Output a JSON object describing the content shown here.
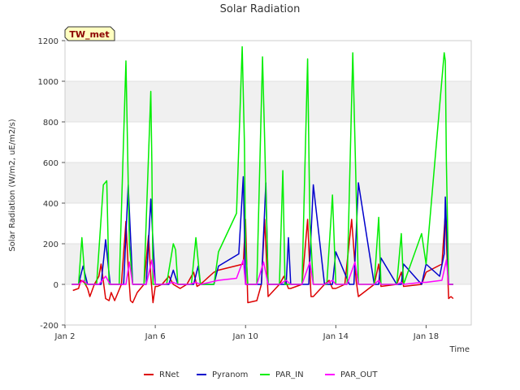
{
  "chart_data": {
    "type": "line",
    "title": "Solar Radiation",
    "xlabel": "Time",
    "ylabel": "Solar Radiation (W/m2, uE/m2/s)",
    "station_label": "TW_met",
    "xlim": [
      2,
      20
    ],
    "ylim": [
      -200,
      1200
    ],
    "x_ticks": [
      {
        "value": 2,
        "label": "Jan 2"
      },
      {
        "value": 6,
        "label": "Jan 6"
      },
      {
        "value": 10,
        "label": "Jan 10"
      },
      {
        "value": 14,
        "label": "Jan 14"
      },
      {
        "value": 18,
        "label": "Jan 18"
      }
    ],
    "y_ticks": [
      -200,
      0,
      200,
      400,
      600,
      800,
      1000,
      1200
    ],
    "grid": true,
    "legend": "bottom",
    "series": [
      {
        "name": "RNet",
        "color": "#dd0000",
        "x": [
          2.35,
          2.6,
          2.7,
          2.85,
          3.0,
          3.1,
          3.3,
          3.5,
          3.6,
          3.8,
          3.95,
          4.05,
          4.2,
          4.5,
          4.7,
          4.8,
          4.9,
          5.0,
          5.2,
          5.5,
          5.7,
          5.8,
          5.9,
          6.0,
          6.1,
          6.3,
          6.6,
          6.8,
          6.95,
          7.1,
          7.4,
          7.7,
          7.85,
          8.0,
          8.6,
          8.8,
          9.9,
          10.0,
          10.1,
          10.5,
          10.7,
          10.85,
          11.0,
          11.5,
          11.7,
          11.9,
          12.0,
          12.5,
          12.75,
          12.9,
          13.0,
          13.5,
          13.7,
          13.85,
          14.0,
          14.4,
          14.7,
          14.9,
          15.0,
          15.7,
          15.9,
          16.0,
          16.7,
          16.9,
          17.0,
          17.8,
          18.0,
          18.7,
          18.85,
          19.0,
          19.1,
          19.2
        ],
        "y": [
          -30,
          -20,
          20,
          10,
          -20,
          -60,
          0,
          40,
          100,
          -70,
          -80,
          -40,
          -80,
          0,
          310,
          80,
          -80,
          -90,
          -40,
          0,
          240,
          40,
          -90,
          -10,
          -10,
          0,
          40,
          0,
          -10,
          -20,
          0,
          60,
          -10,
          0,
          60,
          70,
          100,
          320,
          -90,
          -80,
          0,
          320,
          -60,
          0,
          40,
          -20,
          -20,
          0,
          320,
          -60,
          -60,
          0,
          20,
          -20,
          -20,
          0,
          320,
          20,
          -60,
          0,
          100,
          -10,
          0,
          60,
          -10,
          0,
          60,
          100,
          350,
          -70,
          -60,
          -70
        ]
      },
      {
        "name": "Pyranom",
        "color": "#0000cc",
        "x": [
          2.3,
          2.6,
          2.8,
          3.0,
          3.2,
          3.4,
          3.6,
          3.8,
          4.0,
          4.2,
          4.4,
          4.6,
          4.8,
          5.0,
          5.2,
          5.4,
          5.6,
          5.8,
          6.0,
          6.2,
          6.4,
          6.6,
          6.8,
          7.0,
          7.2,
          7.4,
          7.7,
          7.9,
          8.0,
          8.6,
          8.8,
          9.7,
          9.9,
          10.0,
          10.15,
          10.5,
          10.7,
          10.9,
          11.0,
          11.5,
          11.8,
          11.9,
          12.0,
          12.5,
          12.8,
          13.0,
          13.5,
          13.85,
          14.0,
          14.6,
          14.8,
          15.0,
          15.7,
          15.9,
          16.0,
          16.7,
          16.9,
          17.0,
          17.8,
          18.0,
          18.6,
          18.8,
          18.85,
          19.0,
          19.2
        ],
        "y": [
          0,
          0,
          90,
          0,
          0,
          0,
          0,
          220,
          0,
          0,
          0,
          0,
          490,
          0,
          0,
          0,
          0,
          420,
          0,
          0,
          0,
          0,
          70,
          0,
          0,
          0,
          0,
          90,
          0,
          0,
          90,
          150,
          530,
          0,
          0,
          0,
          0,
          500,
          0,
          0,
          0,
          230,
          0,
          0,
          0,
          490,
          0,
          0,
          160,
          0,
          0,
          500,
          0,
          0,
          130,
          0,
          0,
          100,
          0,
          100,
          40,
          150,
          430,
          0,
          0
        ]
      },
      {
        "name": "PAR_IN",
        "color": "#00ee00",
        "x": [
          2.3,
          2.6,
          2.75,
          2.9,
          3.0,
          3.2,
          3.4,
          3.7,
          3.85,
          3.95,
          4.0,
          4.2,
          4.4,
          4.7,
          4.85,
          5.0,
          5.2,
          5.5,
          5.8,
          5.85,
          5.9,
          6.0,
          6.2,
          6.5,
          6.8,
          6.9,
          7.0,
          7.3,
          7.6,
          7.8,
          8.0,
          8.6,
          8.8,
          9.6,
          9.85,
          9.95,
          10.0,
          10.1,
          10.2,
          10.5,
          10.75,
          10.85,
          11.0,
          11.5,
          11.65,
          11.75,
          12.0,
          12.5,
          12.75,
          12.85,
          13.0,
          13.6,
          13.85,
          14.0,
          14.5,
          14.75,
          14.85,
          15.0,
          15.7,
          15.9,
          16.0,
          16.7,
          16.9,
          17.0,
          17.8,
          18.0,
          18.8,
          18.85,
          18.9,
          19.0,
          19.2
        ],
        "y": [
          0,
          0,
          230,
          0,
          0,
          0,
          0,
          490,
          510,
          0,
          0,
          0,
          0,
          1100,
          200,
          0,
          0,
          0,
          950,
          600,
          0,
          0,
          0,
          0,
          200,
          170,
          0,
          0,
          0,
          230,
          0,
          0,
          160,
          350,
          1170,
          700,
          200,
          0,
          0,
          0,
          1120,
          700,
          0,
          0,
          560,
          0,
          0,
          0,
          1110,
          300,
          0,
          0,
          440,
          0,
          0,
          1140,
          700,
          0,
          0,
          330,
          0,
          0,
          250,
          0,
          250,
          100,
          1140,
          1100,
          600,
          0,
          0
        ]
      },
      {
        "name": "PAR_OUT",
        "color": "#ff00ff",
        "x": [
          2.3,
          2.6,
          2.8,
          3.0,
          3.2,
          3.5,
          3.8,
          4.0,
          4.4,
          4.7,
          4.85,
          5.0,
          5.3,
          5.6,
          5.85,
          6.0,
          6.4,
          6.8,
          7.0,
          7.5,
          7.8,
          8.0,
          8.8,
          9.6,
          9.9,
          10.0,
          10.5,
          10.8,
          11.0,
          11.5,
          11.8,
          12.0,
          12.5,
          12.85,
          13.0,
          13.5,
          13.85,
          14.0,
          14.5,
          14.85,
          15.0,
          15.7,
          15.9,
          16.0,
          16.7,
          16.9,
          17.0,
          17.8,
          18.0,
          18.7,
          18.9,
          19.0,
          19.2
        ],
        "y": [
          0,
          0,
          20,
          0,
          0,
          0,
          40,
          0,
          0,
          0,
          110,
          0,
          0,
          0,
          120,
          0,
          0,
          10,
          0,
          0,
          10,
          0,
          20,
          30,
          120,
          0,
          0,
          110,
          0,
          0,
          20,
          0,
          0,
          110,
          0,
          0,
          20,
          0,
          0,
          110,
          0,
          0,
          20,
          0,
          0,
          10,
          0,
          10,
          10,
          20,
          120,
          0,
          0
        ]
      }
    ]
  }
}
